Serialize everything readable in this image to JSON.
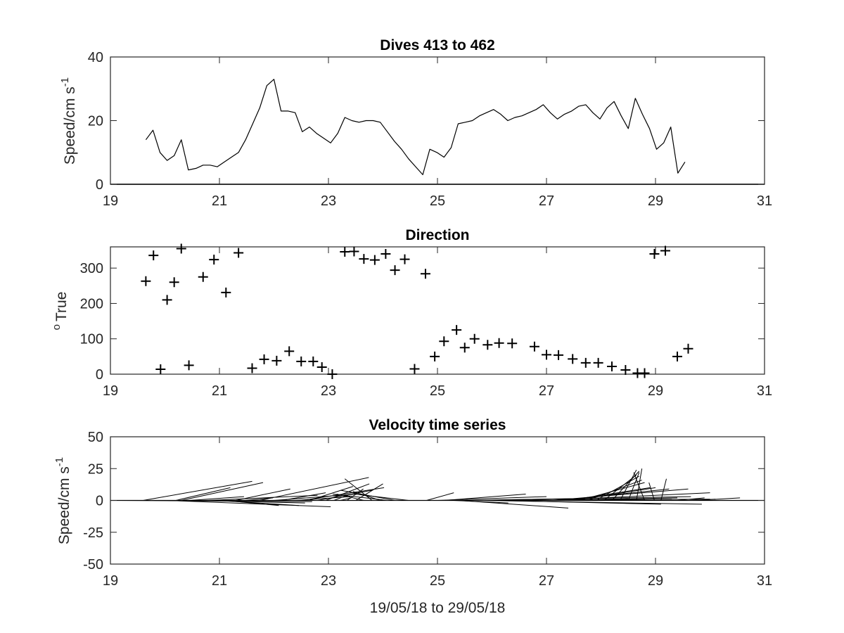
{
  "chart_data": [
    {
      "type": "line",
      "title": "Dives 413 to 462",
      "xlabel": "",
      "ylabel": "Speed/cm s",
      "ylabel_superscript": "-1",
      "xlim": [
        19,
        31
      ],
      "ylim": [
        0,
        40
      ],
      "xticks": [
        19,
        21,
        23,
        25,
        27,
        29,
        31
      ],
      "yticks": [
        0,
        20,
        40
      ],
      "xtick_labels": [
        "19",
        "21",
        "23",
        "25",
        "27",
        "29",
        "31"
      ],
      "ytick_labels": [
        "0",
        "20",
        "40"
      ],
      "grid": false,
      "color": "#000000",
      "x": [
        19.65,
        19.78,
        19.91,
        20.04,
        20.17,
        20.3,
        20.43,
        20.57,
        20.7,
        20.83,
        20.96,
        21.09,
        21.22,
        21.35,
        21.48,
        21.61,
        21.74,
        21.87,
        22.0,
        22.13,
        22.26,
        22.39,
        22.52,
        22.65,
        22.78,
        22.91,
        23.04,
        23.17,
        23.3,
        23.43,
        23.56,
        23.69,
        23.82,
        23.95,
        24.08,
        24.21,
        24.34,
        24.47,
        24.6,
        24.73,
        24.86,
        24.99,
        25.12,
        25.25,
        25.38,
        25.51,
        25.64,
        25.77,
        25.9,
        26.03,
        26.16,
        26.29,
        26.42,
        26.55,
        26.68,
        26.81,
        26.94,
        27.07,
        27.2,
        27.33,
        27.46,
        27.59,
        27.72,
        27.85,
        27.98,
        28.11,
        28.24,
        28.37,
        28.5,
        28.63,
        28.76,
        28.89,
        29.02,
        29.15,
        29.28,
        29.41,
        29.54
      ],
      "values": [
        14,
        17,
        10,
        7.5,
        9,
        14,
        4.5,
        5,
        6,
        6,
        5.5,
        7,
        8.5,
        10,
        14,
        19,
        24,
        31,
        33,
        23,
        23,
        22.5,
        16.5,
        18,
        16,
        14.5,
        13,
        16,
        21,
        20,
        19.5,
        20,
        20,
        19.5,
        16.5,
        13.5,
        11,
        8,
        5.5,
        3,
        11,
        10,
        8.5,
        11.5,
        19,
        19.5,
        20,
        21.5,
        22.5,
        23.5,
        22,
        20,
        21,
        21.5,
        22.5,
        23.5,
        25,
        22.5,
        20.5,
        22,
        23,
        24.5,
        25,
        22.5,
        20.5,
        24,
        26,
        21.5,
        17.5,
        27,
        22,
        17.5,
        11,
        13,
        18,
        3.5,
        7
      ]
    },
    {
      "type": "scatter",
      "title": "Direction",
      "xlabel": "",
      "ylabel": "True",
      "ylabel_prefix_superscript": "o",
      "xlim": [
        19,
        31
      ],
      "ylim": [
        0,
        360
      ],
      "xticks": [
        19,
        21,
        23,
        25,
        27,
        29,
        31
      ],
      "yticks": [
        0,
        100,
        200,
        300
      ],
      "xtick_labels": [
        "19",
        "21",
        "23",
        "25",
        "27",
        "29",
        "31"
      ],
      "ytick_labels": [
        "0",
        "100",
        "200",
        "300"
      ],
      "grid": false,
      "marker": "+",
      "color": "#000000",
      "x": [
        19.65,
        19.79,
        19.92,
        20.04,
        20.17,
        20.3,
        20.44,
        20.7,
        20.9,
        21.12,
        21.35,
        21.6,
        21.82,
        22.05,
        22.28,
        22.5,
        22.72,
        22.88,
        23.07,
        23.3,
        23.47,
        23.65,
        23.85,
        24.05,
        24.22,
        24.4,
        24.58,
        24.78,
        24.95,
        25.12,
        25.35,
        25.5,
        25.68,
        25.92,
        26.13,
        26.37,
        26.78,
        27.0,
        27.22,
        27.48,
        27.72,
        27.95,
        28.2,
        28.45,
        28.67,
        28.8,
        28.98,
        29.18,
        29.4,
        29.6
      ],
      "values": [
        263,
        336,
        14,
        210,
        260,
        355,
        25,
        275,
        324,
        231,
        343,
        17,
        42,
        38,
        65,
        36,
        36,
        20,
        0,
        346,
        347,
        326,
        323,
        340,
        294,
        325,
        15,
        284,
        50,
        93,
        125,
        75,
        100,
        83,
        88,
        87,
        78,
        55,
        54,
        43,
        32,
        32,
        22,
        12,
        3,
        3,
        340,
        349,
        50,
        72
      ]
    },
    {
      "type": "line",
      "subtype": "feather",
      "title": "Velocity time series",
      "xlabel": "19/05/18 to 29/05/18",
      "ylabel": "Speed/cm s",
      "ylabel_superscript": "-1",
      "xlim": [
        19,
        31
      ],
      "ylim": [
        -50,
        50
      ],
      "xticks": [
        19,
        21,
        23,
        25,
        27,
        29,
        31
      ],
      "yticks": [
        -50,
        -25,
        0,
        25,
        50
      ],
      "xtick_labels": [
        "19",
        "21",
        "23",
        "25",
        "27",
        "29",
        "31"
      ],
      "ytick_labels": [
        "-50",
        "-25",
        "0",
        "25",
        "50"
      ],
      "grid": false,
      "color": "#000000",
      "feathers": [
        {
          "x": 19.2,
          "u": 3.5,
          "v": -1
        },
        {
          "x": 19.35,
          "u": 2,
          "v": 0
        },
        {
          "x": 19.6,
          "u": 2,
          "v": 15
        },
        {
          "x": 19.78,
          "u": -0.5,
          "v": 0
        },
        {
          "x": 19.92,
          "u": 2,
          "v": 0
        },
        {
          "x": 20.04,
          "u": 3,
          "v": -5
        },
        {
          "x": 20.2,
          "u": 1,
          "v": 10
        },
        {
          "x": 20.3,
          "u": 1.5,
          "v": 14
        },
        {
          "x": 20.45,
          "u": 1,
          "v": 3
        },
        {
          "x": 20.57,
          "u": 2,
          "v": -2
        },
        {
          "x": 20.8,
          "u": 2,
          "v": 4
        },
        {
          "x": 20.96,
          "u": 1.5,
          "v": -4
        },
        {
          "x": 21.09,
          "u": 1,
          "v": -4
        },
        {
          "x": 21.3,
          "u": 1,
          "v": 9
        },
        {
          "x": 21.48,
          "u": 0.5,
          "v": 2
        },
        {
          "x": 21.74,
          "u": 2,
          "v": 18
        },
        {
          "x": 22.0,
          "u": 1.5,
          "v": 5
        },
        {
          "x": 22.15,
          "u": 0.8,
          "v": 6
        },
        {
          "x": 22.4,
          "u": 1,
          "v": 3
        },
        {
          "x": 22.52,
          "u": 1.5,
          "v": 10
        },
        {
          "x": 22.65,
          "u": 0.8,
          "v": 11
        },
        {
          "x": 22.8,
          "u": 1,
          "v": 8
        },
        {
          "x": 22.95,
          "u": 0.8,
          "v": 13
        },
        {
          "x": 23.1,
          "u": 0.3,
          "v": 5
        },
        {
          "x": 23.22,
          "u": 0.2,
          "v": 2
        },
        {
          "x": 23.34,
          "u": 0.3,
          "v": 9
        },
        {
          "x": 23.5,
          "u": 0.5,
          "v": 13
        },
        {
          "x": 23.65,
          "u": -0.5,
          "v": 5
        },
        {
          "x": 23.8,
          "u": -0.5,
          "v": 17
        },
        {
          "x": 23.95,
          "u": -0.5,
          "v": 7
        },
        {
          "x": 24.08,
          "u": -1,
          "v": 5
        },
        {
          "x": 24.22,
          "u": -1,
          "v": 8
        },
        {
          "x": 24.47,
          "u": -1,
          "v": 5
        },
        {
          "x": 24.8,
          "u": 0.5,
          "v": 6
        },
        {
          "x": 25.0,
          "u": 2,
          "v": 3
        },
        {
          "x": 25.12,
          "u": 1.5,
          "v": 5
        },
        {
          "x": 25.3,
          "u": 1,
          "v": -2
        },
        {
          "x": 25.4,
          "u": 2,
          "v": -6
        },
        {
          "x": 25.5,
          "u": 3,
          "v": 2
        },
        {
          "x": 25.65,
          "u": 4,
          "v": 3
        },
        {
          "x": 25.85,
          "u": 4,
          "v": -3
        },
        {
          "x": 26.0,
          "u": 4,
          "v": 1
        },
        {
          "x": 26.1,
          "u": 3,
          "v": -3
        },
        {
          "x": 26.3,
          "u": 3,
          "v": 1
        },
        {
          "x": 26.6,
          "u": 1.5,
          "v": 0
        },
        {
          "x": 26.8,
          "u": 2,
          "v": 1
        },
        {
          "x": 26.9,
          "u": 2.5,
          "v": 2
        },
        {
          "x": 27.0,
          "u": 3,
          "v": 6
        },
        {
          "x": 27.1,
          "u": 2.5,
          "v": 9
        },
        {
          "x": 27.25,
          "u": 2,
          "v": 9
        },
        {
          "x": 27.4,
          "u": 1.5,
          "v": 10
        },
        {
          "x": 27.5,
          "u": 1.5,
          "v": 10
        },
        {
          "x": 27.6,
          "u": 1.2,
          "v": 14
        },
        {
          "x": 27.75,
          "u": 1,
          "v": 16
        },
        {
          "x": 27.9,
          "u": 0.8,
          "v": 19
        },
        {
          "x": 28.05,
          "u": 0.6,
          "v": 20
        },
        {
          "x": 28.2,
          "u": 0.5,
          "v": 23
        },
        {
          "x": 28.35,
          "u": 0.3,
          "v": 24
        },
        {
          "x": 28.5,
          "u": 0.2,
          "v": 22
        },
        {
          "x": 28.65,
          "u": 0.1,
          "v": 25
        },
        {
          "x": 28.8,
          "u": -0.2,
          "v": 22
        },
        {
          "x": 28.98,
          "u": -0.1,
          "v": 14
        },
        {
          "x": 29.1,
          "u": 0.1,
          "v": 17
        },
        {
          "x": 29.4,
          "u": 0.5,
          "v": 2
        },
        {
          "x": 29.6,
          "u": 0.5,
          "v": 1
        },
        {
          "x": 29.75,
          "u": 0.8,
          "v": 2
        }
      ]
    }
  ]
}
